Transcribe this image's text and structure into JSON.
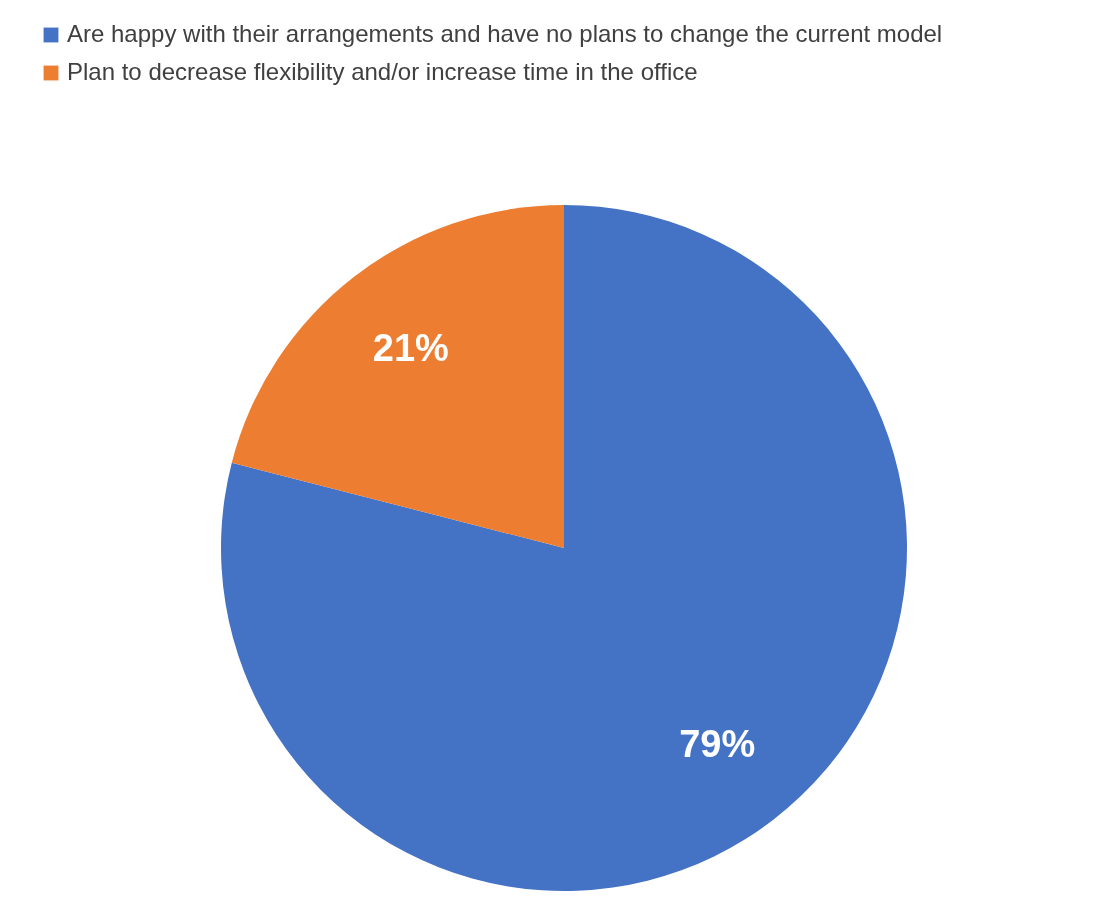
{
  "chart_data": {
    "type": "pie",
    "categories": [
      "Are happy with their arrangements and have no plans to change the current model",
      "Plan to decrease flexibility and/or increase time in the office"
    ],
    "values": [
      79,
      21
    ],
    "colors": [
      "#4472c4",
      "#ed7d31"
    ],
    "value_labels": [
      "79%",
      "21%"
    ],
    "legend": "top"
  }
}
